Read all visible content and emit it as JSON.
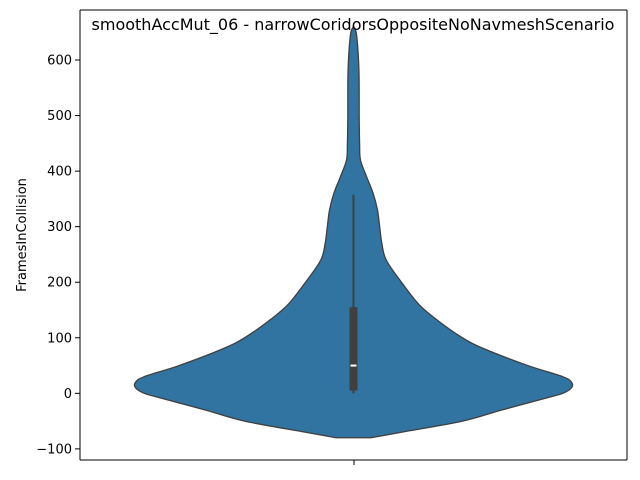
{
  "chart_data": {
    "type": "violin",
    "title": "smoothAccMut_06 - narrowCoridorsOppositeNoNavmeshScenario",
    "xlabel": "",
    "ylabel": "FramesInCollision",
    "ylim": [
      -120,
      690
    ],
    "yticks": [
      -100,
      0,
      100,
      200,
      300,
      400,
      500,
      600
    ],
    "grid": false,
    "violin": {
      "fill_color": "#3274a1",
      "edge_color": "#3f3f3f",
      "min": -80,
      "max": 660,
      "density_profile": [
        {
          "y": -80,
          "w": 0.08
        },
        {
          "y": -70,
          "w": 0.22
        },
        {
          "y": -50,
          "w": 0.5
        },
        {
          "y": -30,
          "w": 0.68
        },
        {
          "y": -10,
          "w": 0.87
        },
        {
          "y": 0,
          "w": 0.96
        },
        {
          "y": 10,
          "w": 1.0
        },
        {
          "y": 20,
          "w": 1.0
        },
        {
          "y": 30,
          "w": 0.96
        },
        {
          "y": 50,
          "w": 0.8
        },
        {
          "y": 80,
          "w": 0.6
        },
        {
          "y": 100,
          "w": 0.5
        },
        {
          "y": 130,
          "w": 0.39
        },
        {
          "y": 160,
          "w": 0.3
        },
        {
          "y": 200,
          "w": 0.22
        },
        {
          "y": 240,
          "w": 0.15
        },
        {
          "y": 270,
          "w": 0.13
        },
        {
          "y": 300,
          "w": 0.12
        },
        {
          "y": 330,
          "w": 0.11
        },
        {
          "y": 360,
          "w": 0.09
        },
        {
          "y": 390,
          "w": 0.06
        },
        {
          "y": 420,
          "w": 0.032
        },
        {
          "y": 450,
          "w": 0.028
        },
        {
          "y": 500,
          "w": 0.026
        },
        {
          "y": 540,
          "w": 0.026
        },
        {
          "y": 580,
          "w": 0.025
        },
        {
          "y": 620,
          "w": 0.02
        },
        {
          "y": 650,
          "w": 0.012
        },
        {
          "y": 660,
          "w": 0.0
        }
      ],
      "box": {
        "whisker_low": 0,
        "q1": 5,
        "median": 50,
        "q3": 155,
        "whisker_high": 358
      }
    }
  }
}
